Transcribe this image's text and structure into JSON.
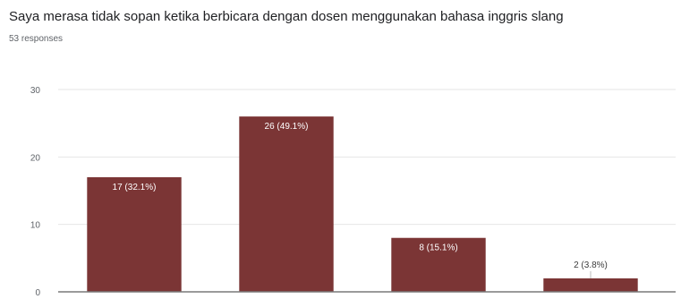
{
  "title": "Saya merasa tidak sopan ketika berbicara dengan dosen menggunakan bahasa inggris slang",
  "subtitle": "53 responses",
  "colors": {
    "bar": "#7b3535",
    "grid": "#e6e6e6",
    "axis": "#7a7a7a",
    "label_inside": "#ffffff",
    "label_outside": "#3c3c3c"
  },
  "chart_data": {
    "type": "bar",
    "title": "Saya merasa tidak sopan ketika berbicara dengan dosen menggunakan bahasa inggris slang",
    "categories": [
      "",
      "",
      "",
      ""
    ],
    "values": [
      17,
      26,
      8,
      2
    ],
    "data_labels": [
      "17 (32.1%)",
      "26 (49.1%)",
      "8 (15.1%)",
      "2 (3.8%)"
    ],
    "yticks": [
      0,
      10,
      20,
      30
    ],
    "ylim": [
      0,
      30
    ],
    "grid": true,
    "legend": "none"
  }
}
